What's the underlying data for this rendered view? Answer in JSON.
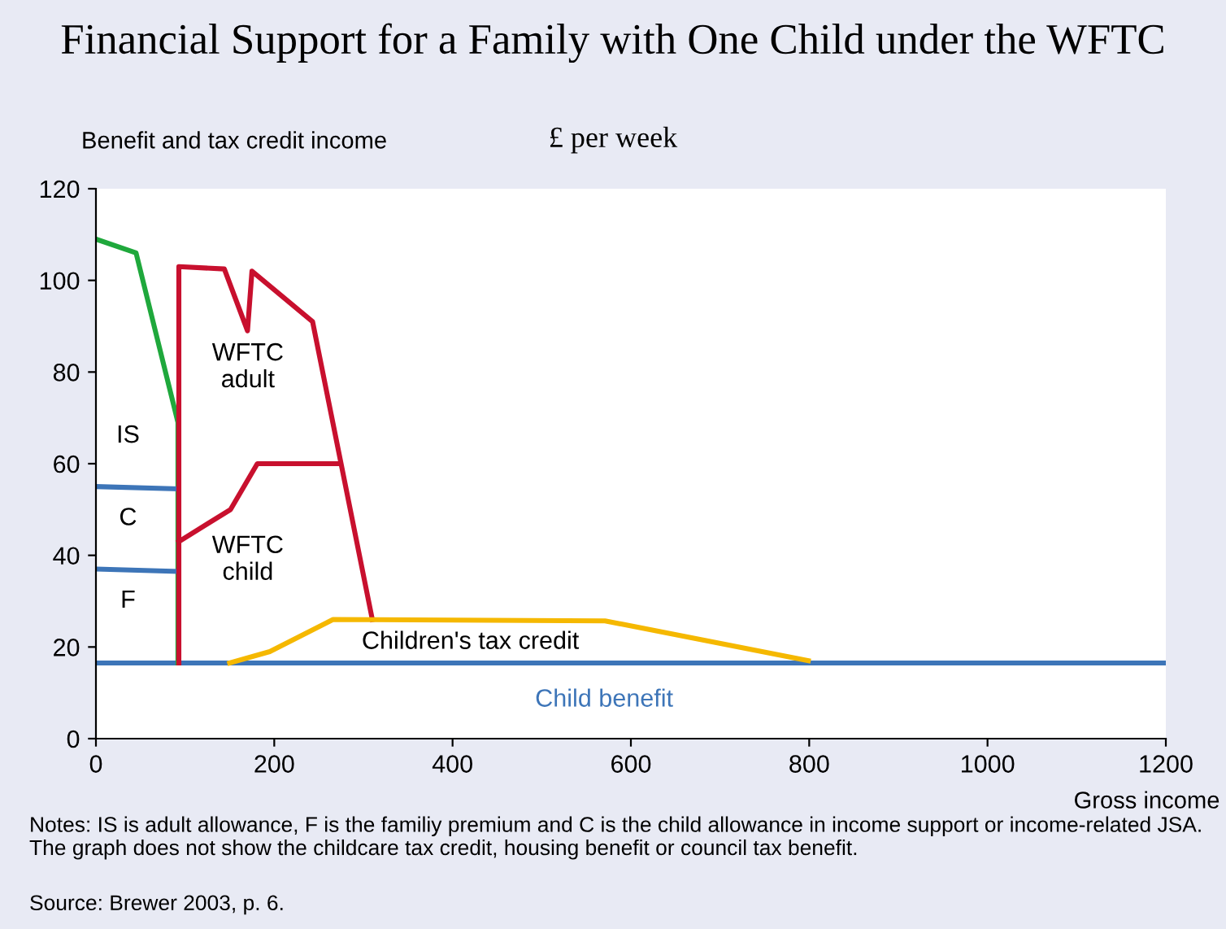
{
  "chart_data": {
    "type": "line",
    "title": "Financial Support for a Family with One Child under the WFTC",
    "subtitle": "£ per week",
    "ylabel": "Benefit and tax credit income",
    "xlabel": "Gross income",
    "series": [
      {
        "x": [
          0,
          1200
        ],
        "values": [
          16.5,
          16.5
        ],
        "color": "#3d75b8"
      },
      {
        "x": [
          0,
          45,
          92,
          92
        ],
        "values": [
          109,
          106,
          69,
          16.5
        ],
        "color": "#1fa83c"
      },
      {
        "x": [
          0,
          91
        ],
        "values": [
          55,
          54.5
        ],
        "color": "#3d75b8"
      },
      {
        "x": [
          0,
          91
        ],
        "values": [
          37,
          36.5
        ],
        "color": "#3d75b8"
      },
      {
        "x": [
          93,
          93,
          144,
          170,
          175,
          243,
          310
        ],
        "values": [
          16.5,
          103,
          102.5,
          89,
          102,
          91,
          26
        ],
        "color": "#c8102e"
      },
      {
        "x": [
          93,
          151,
          181,
          270
        ],
        "values": [
          43,
          50,
          60,
          60
        ],
        "color": "#c8102e"
      },
      {
        "x": [
          150,
          195,
          266,
          571,
          799
        ],
        "values": [
          16.5,
          19,
          26,
          25.7,
          17
        ],
        "color": "#f5b800"
      }
    ],
    "xlim": [
      0,
      1200
    ],
    "xticks": [
      0,
      200,
      400,
      600,
      800,
      1000,
      1200
    ],
    "ylim": [
      0,
      120
    ],
    "yticks": [
      0,
      20,
      40,
      60,
      80,
      100,
      120
    ],
    "grid": false,
    "legend": false,
    "marker": "none",
    "line_style": "solid",
    "annotations": [
      "IS",
      "C",
      "F",
      "WFTC\nadult",
      "WFTC\nchild",
      "Children's tax credit",
      "Child benefit",
      "Notes: IS is adult allowance, F is the familiy premium and C is the child allowance in income support or income-related JSA. The graph does not show the childcare tax credit, housing benefit or council tax benefit.",
      "Source: Brewer 2003, p. 6."
    ]
  }
}
